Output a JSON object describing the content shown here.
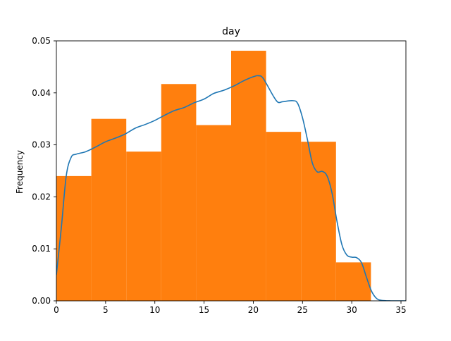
{
  "chart_data": {
    "type": "bar",
    "title": "day",
    "xlabel": "",
    "ylabel": "Frequency",
    "xlim": [
      0,
      35.5
    ],
    "ylim": [
      0,
      0.05
    ],
    "grid": false,
    "legend": "none",
    "x_ticks": [
      0,
      5,
      10,
      15,
      20,
      25,
      30,
      35
    ],
    "x_tick_labels": [
      "0",
      "5",
      "10",
      "15",
      "20",
      "25",
      "30",
      "35"
    ],
    "y_ticks": [
      0,
      0.01,
      0.02,
      0.03,
      0.04,
      0.05
    ],
    "y_tick_labels": [
      "0.00",
      "0.01",
      "0.02",
      "0.03",
      "0.04",
      "0.05"
    ],
    "histogram": {
      "bin_edges": [
        0,
        3.55,
        7.1,
        10.65,
        14.2,
        17.75,
        21.3,
        24.85,
        28.4,
        31.95
      ],
      "values": [
        0.024,
        0.035,
        0.0287,
        0.0417,
        0.0338,
        0.0481,
        0.0325,
        0.0306,
        0.0074
      ],
      "color": "#ff7f0e"
    },
    "density_curve": {
      "color": "#1f77b4",
      "points": [
        [
          0,
          0.005
        ],
        [
          0.5,
          0.014
        ],
        [
          1,
          0.024
        ],
        [
          1.5,
          0.0276
        ],
        [
          2,
          0.0282
        ],
        [
          3,
          0.0287
        ],
        [
          4,
          0.0296
        ],
        [
          5,
          0.0306
        ],
        [
          6,
          0.0313
        ],
        [
          7,
          0.0321
        ],
        [
          8,
          0.0332
        ],
        [
          9,
          0.0339
        ],
        [
          10,
          0.0347
        ],
        [
          11,
          0.0357
        ],
        [
          12,
          0.0366
        ],
        [
          13,
          0.0372
        ],
        [
          14,
          0.0381
        ],
        [
          15,
          0.0388
        ],
        [
          16,
          0.0399
        ],
        [
          17,
          0.0405
        ],
        [
          18,
          0.0413
        ],
        [
          19,
          0.0423
        ],
        [
          20,
          0.0431
        ],
        [
          20.5,
          0.0433
        ],
        [
          21,
          0.0428
        ],
        [
          22,
          0.0395
        ],
        [
          22.5,
          0.0382
        ],
        [
          23,
          0.0383
        ],
        [
          24,
          0.0385
        ],
        [
          24.5,
          0.038
        ],
        [
          25,
          0.0352
        ],
        [
          25.5,
          0.031
        ],
        [
          26,
          0.0265
        ],
        [
          26.5,
          0.0248
        ],
        [
          27,
          0.0249
        ],
        [
          27.5,
          0.024
        ],
        [
          28,
          0.0207
        ],
        [
          28.5,
          0.0153
        ],
        [
          29,
          0.0108
        ],
        [
          29.5,
          0.0088
        ],
        [
          30,
          0.0084
        ],
        [
          30.5,
          0.0083
        ],
        [
          31,
          0.0073
        ],
        [
          31.5,
          0.0045
        ],
        [
          32,
          0.0019
        ],
        [
          32.5,
          0.0005
        ],
        [
          33,
          0.0001
        ],
        [
          34,
          0
        ],
        [
          35.5,
          0
        ]
      ]
    }
  }
}
